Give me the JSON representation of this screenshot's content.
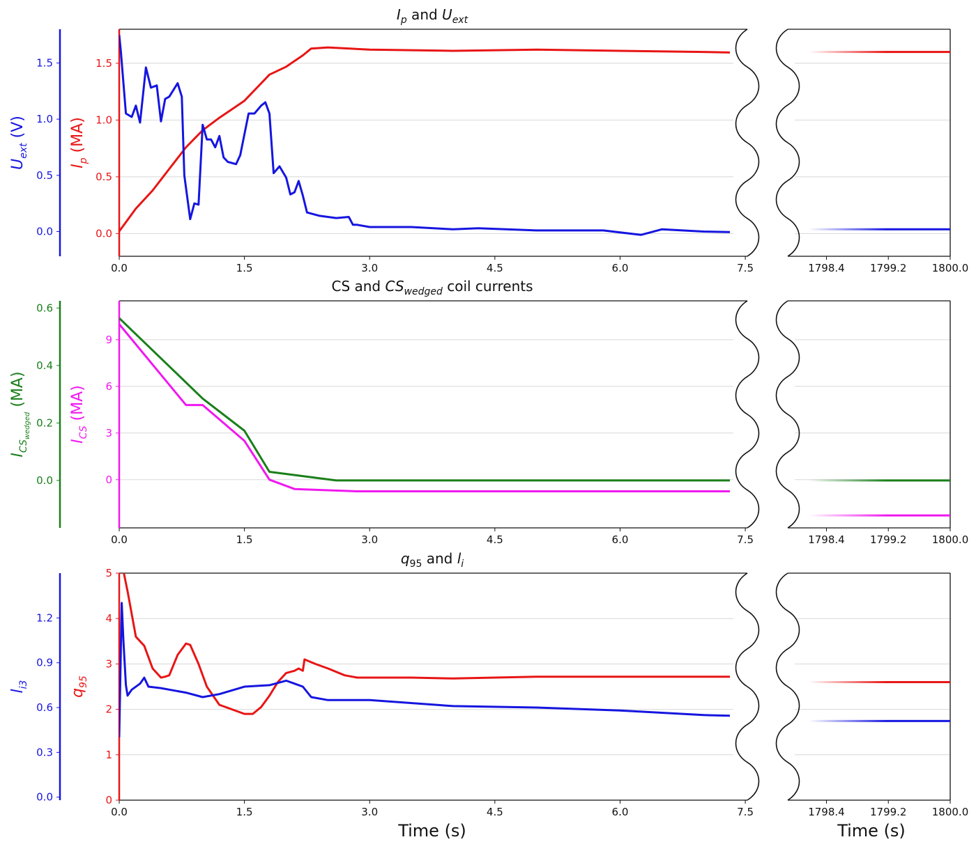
{
  "colors": {
    "blue": "#1515e0",
    "red": "#e81515",
    "green": "#1a7f1a",
    "magenta": "#f018f0",
    "black": "#111111",
    "grid": "#d8d8d8"
  },
  "chart_data": [
    {
      "type": "line",
      "title": "I_p and U_ext",
      "title_parts": [
        "I",
        "p",
        " and ",
        "U",
        "ext"
      ],
      "xlabel": "",
      "xlim_main": [
        0,
        7.8
      ],
      "xticks_main": [
        0.0,
        1.5,
        3.0,
        4.5,
        6.0,
        7.5
      ],
      "xlim_tail": [
        1797.9,
        1800.0
      ],
      "xticks_tail": [
        1798.4,
        1799.2,
        1800.0
      ],
      "axes": {
        "left_outer": {
          "label_base": "U",
          "label_sub": "ext",
          "label_unit": " (V)",
          "color": "blue",
          "ylim": [
            -0.22,
            1.8
          ],
          "ticks": [
            0.0,
            0.5,
            1.0,
            1.5
          ]
        },
        "left_inner": {
          "label_base": "I",
          "label_sub": "p",
          "label_unit": " (MA)",
          "color": "red",
          "ylim": [
            -0.2,
            1.8
          ],
          "ticks": [
            0.0,
            0.5,
            1.0,
            1.5
          ]
        }
      },
      "series": [
        {
          "name": "I_p",
          "axis": "left_inner",
          "color": "red",
          "x": [
            0,
            0.05,
            0.2,
            0.4,
            0.6,
            0.8,
            1.0,
            1.2,
            1.5,
            1.8,
            2.0,
            2.2,
            2.3,
            2.5,
            3.0,
            4.0,
            5.0,
            6.0,
            7.0,
            7.7
          ],
          "y": [
            0.02,
            0.07,
            0.22,
            0.38,
            0.57,
            0.76,
            0.91,
            1.02,
            1.17,
            1.4,
            1.47,
            1.57,
            1.63,
            1.64,
            1.62,
            1.61,
            1.62,
            1.61,
            1.6,
            1.59
          ],
          "tail_y": 1.6
        },
        {
          "name": "U_ext",
          "axis": "left_outer",
          "color": "blue",
          "x": [
            0,
            0.02,
            0.08,
            0.15,
            0.2,
            0.25,
            0.32,
            0.38,
            0.45,
            0.5,
            0.55,
            0.6,
            0.7,
            0.75,
            0.78,
            0.85,
            0.9,
            0.95,
            1.0,
            1.05,
            1.1,
            1.15,
            1.2,
            1.25,
            1.3,
            1.4,
            1.45,
            1.55,
            1.62,
            1.7,
            1.75,
            1.8,
            1.85,
            1.92,
            2.0,
            2.05,
            2.1,
            2.15,
            2.2,
            2.25,
            2.4,
            2.6,
            2.75,
            2.8,
            2.85,
            3.0,
            3.5,
            4.0,
            4.3,
            5.0,
            5.8,
            6.25,
            6.5,
            7.0,
            7.7
          ],
          "y": [
            1.75,
            1.6,
            1.05,
            1.02,
            1.12,
            0.97,
            1.46,
            1.28,
            1.3,
            0.98,
            1.18,
            1.2,
            1.32,
            1.2,
            0.5,
            0.11,
            0.25,
            0.24,
            0.95,
            0.82,
            0.82,
            0.75,
            0.85,
            0.66,
            0.62,
            0.6,
            0.68,
            1.05,
            1.05,
            1.12,
            1.15,
            1.05,
            0.52,
            0.58,
            0.48,
            0.33,
            0.35,
            0.45,
            0.32,
            0.17,
            0.14,
            0.12,
            0.13,
            0.06,
            0.06,
            0.04,
            0.04,
            0.02,
            0.03,
            0.01,
            0.01,
            -0.03,
            0.02,
            0.0,
            -0.01
          ],
          "tail_y": 0.02
        }
      ]
    },
    {
      "type": "line",
      "title": "CS and CS_wedged coil currents",
      "title_parts": [
        "CS and ",
        "CS",
        "wedged",
        " coil currents"
      ],
      "xlabel": "",
      "xlim_main": [
        0,
        7.8
      ],
      "xticks_main": [
        0.0,
        1.5,
        3.0,
        4.5,
        6.0,
        7.5
      ],
      "xlim_tail": [
        1797.9,
        1800.0
      ],
      "xticks_tail": [
        1798.4,
        1799.2,
        1800.0
      ],
      "axes": {
        "left_outer": {
          "label_base": "I",
          "label_sub": "CS",
          "label_subsub": "wedged",
          "label_unit": " (MA)",
          "color": "green",
          "ylim": [
            -0.165,
            0.625
          ],
          "ticks": [
            0.0,
            0.2,
            0.4,
            0.6
          ]
        },
        "left_inner": {
          "label_base": "I",
          "label_sub": "CS",
          "label_unit": " (MA)",
          "color": "magenta",
          "ylim": [
            -3.1,
            11.5
          ],
          "ticks": [
            0,
            3,
            6,
            9
          ]
        },
        "tick_labels_inner": [
          "0",
          "3",
          "6",
          "9"
        ]
      },
      "series": [
        {
          "name": "I_CS_wedged",
          "axis": "left_outer",
          "color": "green",
          "x": [
            0,
            1.0,
            1.5,
            1.8,
            2.6,
            7.7
          ],
          "y": [
            0.565,
            0.285,
            0.173,
            0.03,
            0.0,
            0.0
          ],
          "tail_y": 0.0
        },
        {
          "name": "I_CS",
          "axis": "left_inner",
          "color": "magenta",
          "x": [
            0,
            0.8,
            1.0,
            1.5,
            1.8,
            2.1,
            2.85,
            7.7
          ],
          "y": [
            10.0,
            4.8,
            4.8,
            2.5,
            0.0,
            -0.6,
            -0.75,
            -0.75
          ],
          "tail_y": -2.3
        }
      ]
    },
    {
      "type": "line",
      "title": "q95 and l_i",
      "title_parts": [
        "q",
        "95",
        " and ",
        "l",
        "i"
      ],
      "xlabel": "Time (s)",
      "xlim_main": [
        0,
        7.8
      ],
      "xticks_main": [
        0.0,
        1.5,
        3.0,
        4.5,
        6.0,
        7.5
      ],
      "xlim_tail": [
        1797.9,
        1800.0
      ],
      "xticks_tail": [
        1798.4,
        1799.2,
        1800.0
      ],
      "axes": {
        "left_outer": {
          "label_base": "l",
          "label_sub": "i3",
          "label_unit": "",
          "color": "blue",
          "ylim": [
            -0.02,
            1.5
          ],
          "ticks": [
            0.0,
            0.3,
            0.6,
            0.9,
            1.2
          ]
        },
        "left_inner": {
          "label_base": "q",
          "label_sub": "95",
          "label_unit": "",
          "color": "red",
          "ylim": [
            0,
            5
          ],
          "ticks": [
            0,
            1,
            2,
            3,
            4,
            5
          ]
        },
        "tick_labels_inner": [
          "0",
          "1",
          "2",
          "3",
          "4",
          "5"
        ]
      },
      "series": [
        {
          "name": "q95",
          "axis": "left_inner",
          "color": "red",
          "x": [
            0.0,
            0.1,
            0.2,
            0.3,
            0.4,
            0.5,
            0.55,
            0.6,
            0.7,
            0.8,
            0.85,
            0.95,
            1.05,
            1.2,
            1.35,
            1.5,
            1.6,
            1.7,
            1.8,
            1.9,
            2.0,
            2.1,
            2.15,
            2.2,
            2.22,
            2.35,
            2.5,
            2.7,
            2.85,
            3.5,
            4.0,
            5.0,
            6.0,
            7.0,
            7.7
          ],
          "y": [
            5.5,
            4.6,
            3.6,
            3.4,
            2.9,
            2.7,
            2.72,
            2.75,
            3.2,
            3.45,
            3.42,
            3.0,
            2.5,
            2.1,
            2.0,
            1.9,
            1.9,
            2.05,
            2.3,
            2.6,
            2.8,
            2.85,
            2.9,
            2.85,
            3.1,
            3.0,
            2.9,
            2.75,
            2.7,
            2.7,
            2.68,
            2.72,
            2.72,
            2.72,
            2.72
          ],
          "tail_y": 2.6
        },
        {
          "name": "l_i3",
          "axis": "left_outer",
          "color": "blue",
          "x": [
            0.0,
            0.03,
            0.05,
            0.08,
            0.1,
            0.15,
            0.25,
            0.3,
            0.35,
            0.5,
            0.6,
            0.8,
            1.0,
            1.2,
            1.5,
            1.8,
            2.0,
            2.1,
            2.2,
            2.3,
            2.5,
            3.0,
            4.0,
            5.0,
            6.0,
            7.0,
            7.7
          ],
          "y": [
            0.4,
            1.3,
            1.05,
            0.75,
            0.68,
            0.72,
            0.76,
            0.8,
            0.74,
            0.73,
            0.72,
            0.7,
            0.67,
            0.69,
            0.74,
            0.75,
            0.78,
            0.76,
            0.74,
            0.67,
            0.65,
            0.65,
            0.61,
            0.6,
            0.58,
            0.55,
            0.54
          ],
          "tail_y": 0.51
        }
      ]
    }
  ]
}
